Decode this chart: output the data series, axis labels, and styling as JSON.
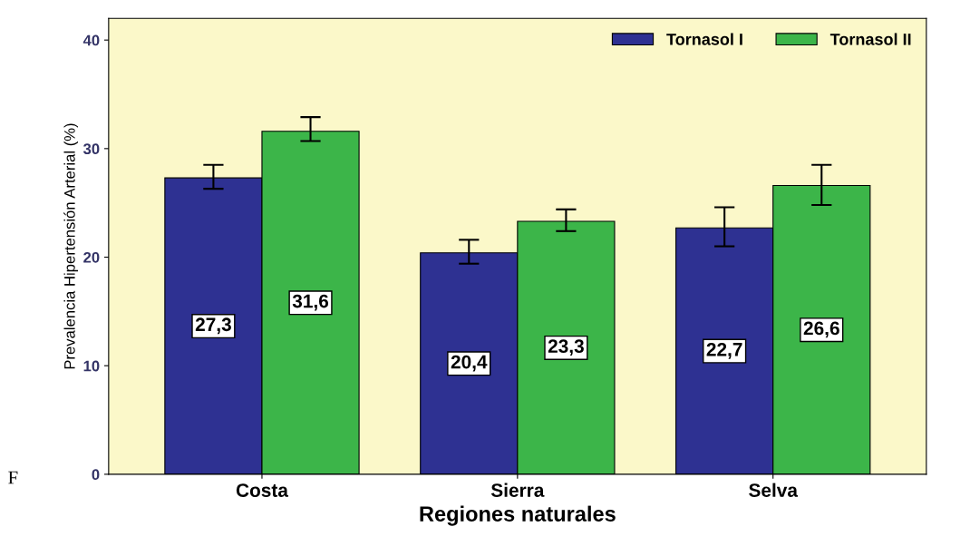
{
  "chart_data": {
    "type": "bar",
    "xlabel": "Regiones naturales",
    "ylabel": "Prevalencia Hipertensión Arterial (%)",
    "categories": [
      "Costa",
      "Sierra",
      "Selva"
    ],
    "series": [
      {
        "name": "Tornasol I",
        "color": "#2e3192",
        "values": [
          27.3,
          20.4,
          22.7
        ],
        "errors": [
          [
            26.3,
            28.5
          ],
          [
            19.4,
            21.6
          ],
          [
            21.0,
            24.6
          ]
        ],
        "value_labels": [
          "27,3",
          "20,4",
          "22,7"
        ]
      },
      {
        "name": "Tornasol II",
        "color": "#3cb549",
        "values": [
          31.6,
          23.3,
          26.6
        ],
        "errors": [
          [
            30.7,
            32.9
          ],
          [
            22.4,
            24.4
          ],
          [
            24.8,
            28.5
          ]
        ],
        "value_labels": [
          "31,6",
          "23,3",
          "26,6"
        ]
      }
    ],
    "ylim": [
      0,
      42
    ],
    "yticks": [
      0,
      10,
      20,
      30,
      40
    ],
    "grid": false,
    "legend": "top right",
    "annotations": [
      "F"
    ]
  }
}
